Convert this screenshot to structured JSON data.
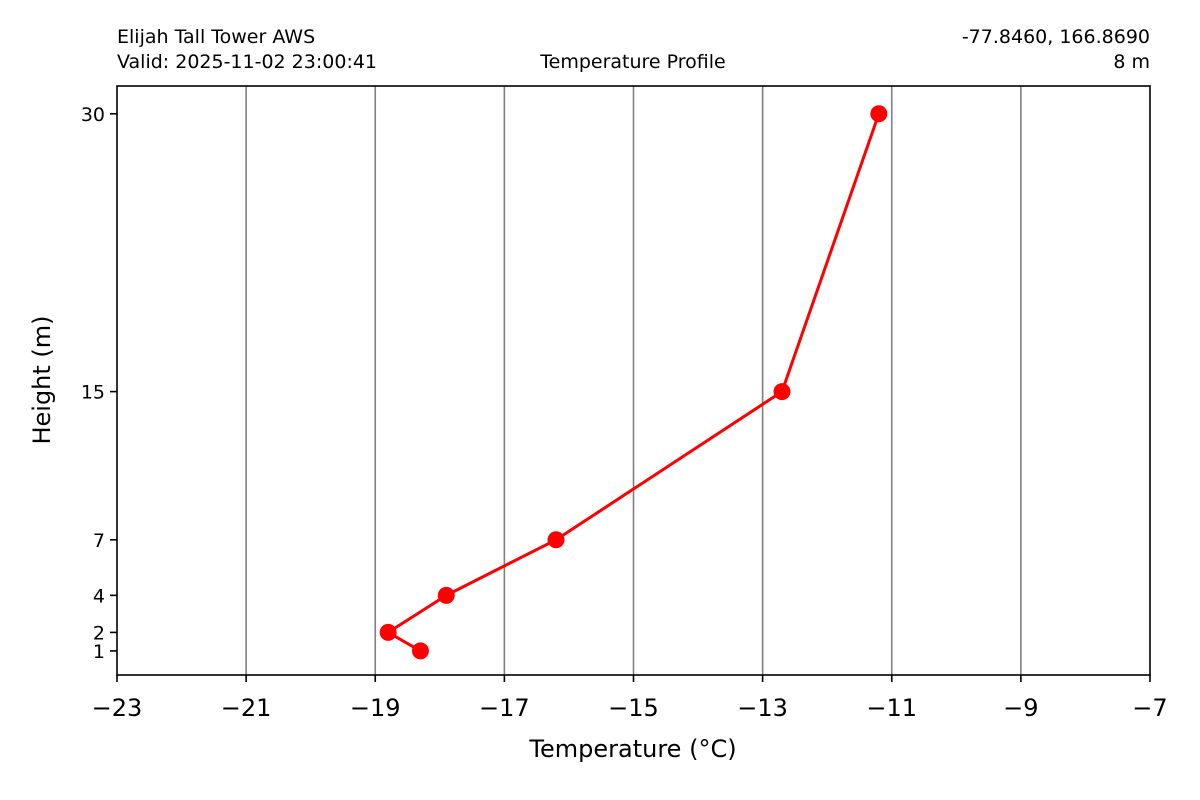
{
  "header": {
    "station": "Elijah Tall Tower AWS",
    "valid": "Valid: 2025-11-02 23:00:41",
    "title": "Temperature Profile",
    "coords": "-77.8460, 166.8690",
    "elevation": "8 m"
  },
  "chart_data": {
    "type": "line",
    "title": "Temperature Profile",
    "xlabel": "Temperature (°C)",
    "ylabel": "Height (m)",
    "xlim": [
      -23,
      -7
    ],
    "ylim": [
      -0.3,
      31.5
    ],
    "x_ticks": [
      -23,
      -21,
      -19,
      -17,
      -15,
      -13,
      -11,
      -9,
      -7
    ],
    "x_tick_labels": [
      "−23",
      "−21",
      "−19",
      "−17",
      "−15",
      "−13",
      "−11",
      "−9",
      "−7"
    ],
    "y_ticks": [
      1,
      2,
      4,
      7,
      15,
      30
    ],
    "y_tick_labels": [
      "1",
      "2",
      "4",
      "7",
      "15",
      "30"
    ],
    "grid": "vertical lines at x ticks",
    "color": "#ff0000",
    "series": [
      {
        "x": [
          -18.3,
          -18.8,
          -17.9,
          -16.2,
          -12.7,
          -11.2
        ],
        "y": [
          1,
          2,
          4,
          7,
          15,
          30
        ]
      }
    ]
  }
}
